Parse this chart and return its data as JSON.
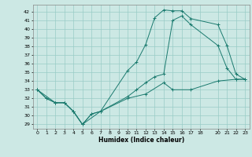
{
  "xlabel": "Humidex (Indice chaleur)",
  "bg_color": "#cce8e4",
  "grid_color": "#99ccc6",
  "line_color": "#1a7a6e",
  "xlim": [
    -0.5,
    23.5
  ],
  "ylim": [
    28.5,
    42.8
  ],
  "xticks": [
    0,
    1,
    2,
    3,
    4,
    5,
    6,
    7,
    8,
    9,
    10,
    11,
    12,
    13,
    14,
    15,
    16,
    17,
    18,
    20,
    21,
    22,
    23
  ],
  "yticks": [
    29,
    30,
    31,
    32,
    33,
    34,
    35,
    36,
    37,
    38,
    39,
    40,
    41,
    42
  ],
  "line1_x": [
    0,
    1,
    2,
    3,
    4,
    5,
    6,
    7,
    10,
    11,
    12,
    13,
    14,
    15,
    16,
    17,
    20,
    21,
    22,
    23
  ],
  "line1_y": [
    33,
    32,
    31.5,
    31.5,
    30.5,
    29,
    30.2,
    30.5,
    35.2,
    36.2,
    38.2,
    41.3,
    42.2,
    42.1,
    42.1,
    41.2,
    40.5,
    38.1,
    34.8,
    34.2
  ],
  "line2_x": [
    0,
    1,
    2,
    3,
    4,
    5,
    6,
    7,
    10,
    11,
    12,
    13,
    14,
    15,
    16,
    17,
    20,
    21,
    22,
    23
  ],
  "line2_y": [
    33,
    32,
    31.5,
    31.5,
    30.5,
    29,
    30.2,
    30.5,
    32.2,
    33.0,
    33.8,
    34.5,
    34.8,
    41.0,
    41.5,
    40.5,
    38.1,
    35.5,
    34.2,
    34.2
  ],
  "line3_x": [
    0,
    2,
    3,
    4,
    5,
    7,
    10,
    12,
    14,
    15,
    17,
    20,
    22,
    23
  ],
  "line3_y": [
    33,
    31.5,
    31.5,
    30.5,
    29,
    30.5,
    32.0,
    32.5,
    33.8,
    33.0,
    33.0,
    34.0,
    34.2,
    34.2
  ]
}
